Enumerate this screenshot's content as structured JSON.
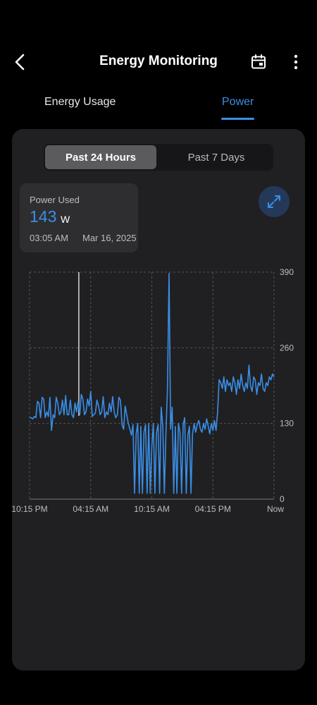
{
  "header": {
    "title": "Energy Monitoring",
    "back_icon": "chevron-left-icon",
    "calendar_icon": "calendar-icon",
    "more_icon": "more-vertical-icon"
  },
  "tabs": [
    {
      "label": "Energy Usage",
      "active": false
    },
    {
      "label": "Power",
      "active": true
    }
  ],
  "range_selector": {
    "options": [
      {
        "label": "Past 24 Hours",
        "selected": true
      },
      {
        "label": "Past 7 Days",
        "selected": false
      }
    ]
  },
  "tooltip": {
    "label": "Power Used",
    "value": "143",
    "unit": "W",
    "time": "03:05 AM",
    "date": "Mar 16, 2025"
  },
  "expand_icon": "expand-icon",
  "colors": {
    "accent": "#3a8ee6",
    "background": "#000000",
    "card": "#202022"
  },
  "chart_data": {
    "type": "line",
    "title": "",
    "xlabel": "",
    "ylabel": "",
    "ylim": [
      0,
      390
    ],
    "y_ticks": [
      "0",
      "130",
      "260",
      "390"
    ],
    "x_ticks": [
      "10:15 PM",
      "04:15 AM",
      "10:15 AM",
      "04:15 PM",
      "Now"
    ],
    "grid": true,
    "cursor_time": "03:05 AM",
    "series": [
      {
        "values": [
          140,
          140,
          138,
          142,
          140,
          168,
          165,
          140,
          175,
          172,
          140,
          150,
          142,
          175,
          118,
          145,
          140,
          175,
          165,
          145,
          150,
          170,
          145,
          178,
          145,
          145,
          170,
          145,
          140,
          165,
          150,
          168,
          145,
          180,
          172,
          145,
          150,
          172,
          160,
          185,
          142,
          145,
          148,
          170,
          160,
          145,
          150,
          176,
          140,
          150,
          145,
          165,
          150,
          176,
          150,
          140,
          145,
          175,
          170,
          128,
          120,
          160,
          145,
          130,
          120,
          110,
          128,
          10,
          112,
          130,
          10,
          125,
          10,
          115,
          128,
          10,
          130,
          10,
          90,
          130,
          10,
          115,
          128,
          10,
          158,
          125,
          10,
          110,
          190,
          388,
          120,
          158,
          10,
          125,
          10,
          130,
          115,
          10,
          128,
          140,
          10,
          110,
          125,
          10,
          112,
          130,
          115,
          128,
          135,
          120,
          115,
          130,
          120,
          138,
          125,
          112,
          130,
          118,
          135,
          118,
          150,
          205,
          200,
          190,
          210,
          185,
          205,
          195,
          200,
          185,
          210,
          200,
          180,
          205,
          190,
          215,
          195,
          185,
          200,
          190,
          230,
          195,
          185,
          210,
          205,
          180,
          200,
          195,
          215,
          190,
          185,
          200,
          195,
          210,
          205,
          215,
          210
        ]
      }
    ]
  }
}
